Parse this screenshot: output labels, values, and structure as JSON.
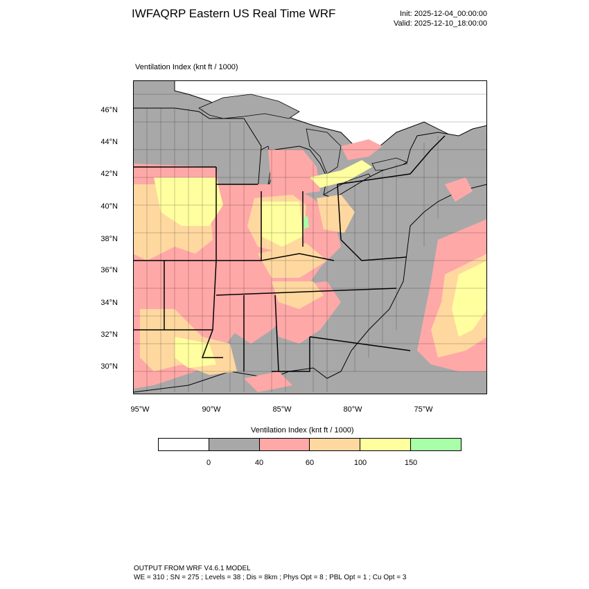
{
  "header": {
    "title": "IWFAQRP Eastern US Real Time WRF",
    "init": "Init: 2025-12-04_00:00:00",
    "valid": "Valid: 2025-12-10_18:00:00"
  },
  "map": {
    "field_label": "Ventilation Index   (knt ft / 1000)",
    "lat_labels": [
      "46°N",
      "44°N",
      "42°N",
      "40°N",
      "38°N",
      "36°N",
      "34°N",
      "32°N",
      "30°N"
    ],
    "lon_labels": [
      "95°W",
      "90°W",
      "85°W",
      "80°W",
      "75°W"
    ],
    "colors": {
      "gray": "#a8a8a8",
      "pink": "#ffa8a8",
      "orange": "#ffd8a0",
      "yellow": "#ffff a0",
      "green": "#a8ffa8",
      "lake": "#a8a8a8"
    }
  },
  "colorbar": {
    "title": "Ventilation Index  (knt ft / 1000)",
    "boxes": [
      "#ffffff",
      "#a8a8a8",
      "#ffa8a8",
      "#ffd8a0",
      "#ffffa0",
      "#a8ffa8"
    ],
    "ticks": [
      "0",
      "40",
      "60",
      "100",
      "150"
    ]
  },
  "footer": {
    "line1": "OUTPUT FROM WRF V4.6.1 MODEL",
    "line2": "WE = 310 ; SN = 275 ; Levels = 38 ; Dis = 8km ; Phys Opt = 8 ; PBL Opt = 1 ; Cu Opt = 3"
  }
}
